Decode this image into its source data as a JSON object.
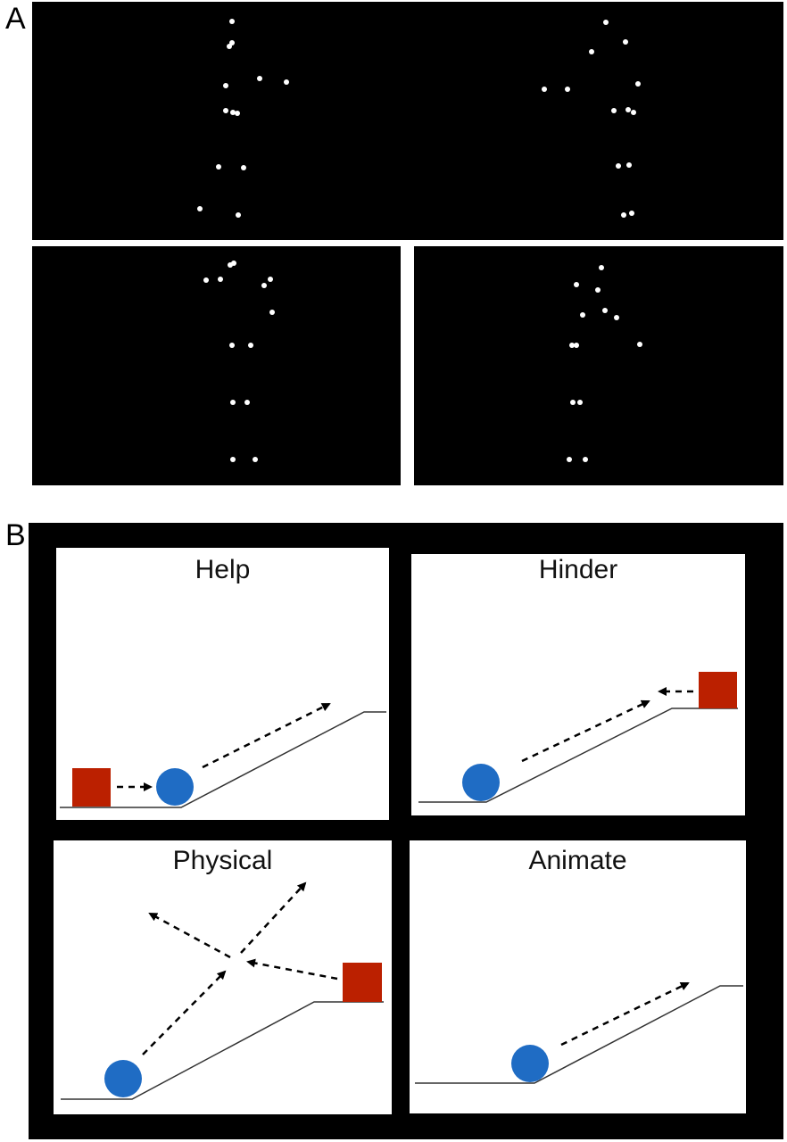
{
  "panel_labels": {
    "a": "A",
    "b": "B"
  },
  "colors": {
    "background": "#000000",
    "dot": "#ffffff",
    "ball": "#1f6cc4",
    "block": "#bb2000",
    "card": "#ffffff",
    "line": "#333333"
  },
  "conditions": {
    "help": "Help",
    "hinder": "Hinder",
    "physical": "Physical",
    "animate": "Animate"
  },
  "icons": {
    "ball": "blue-circle",
    "block": "red-square",
    "arrow": "dashed-arrow"
  }
}
